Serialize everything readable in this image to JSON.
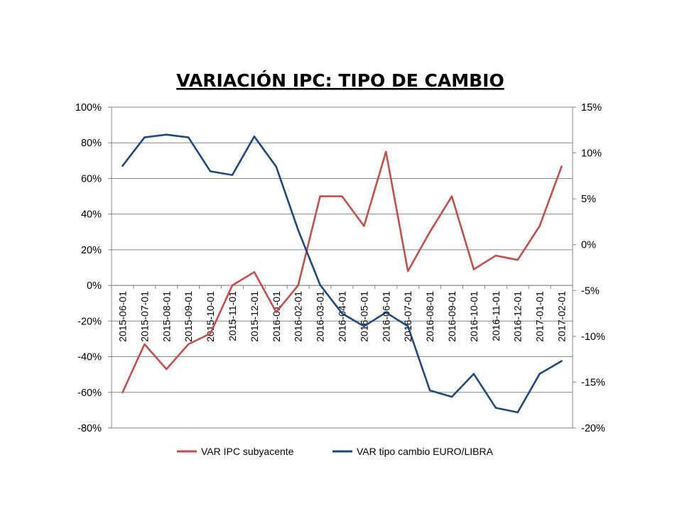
{
  "chart_data": {
    "type": "line",
    "title": "VARIACIÓN IPC: TIPO DE CAMBIO",
    "x": [
      "2015-06-01",
      "2015-07-01",
      "2015-08-01",
      "2015-09-01",
      "2015-10-01",
      "2015-11-01",
      "2015-12-01",
      "2016-01-01",
      "2016-02-01",
      "2016-03-01",
      "2016-04-01",
      "2016-05-01",
      "2016-06-01",
      "2016-07-01",
      "2016-08-01",
      "2016-09-01",
      "2016-10-01",
      "2016-11-01",
      "2016-12-01",
      "2017-01-01",
      "2017-02-01"
    ],
    "y_left": {
      "min": -80,
      "max": 100,
      "step": 20,
      "ticks": [
        "-80%",
        "-60%",
        "-40%",
        "-20%",
        "0%",
        "20%",
        "40%",
        "60%",
        "80%",
        "100%"
      ]
    },
    "y_right": {
      "min": -20,
      "max": 15,
      "step": 5,
      "ticks": [
        "-20%",
        "-15%",
        "-10%",
        "-5%",
        "0%",
        "5%",
        "10%",
        "15%"
      ]
    },
    "grid": true,
    "legend_position": "bottom",
    "series": [
      {
        "name": "VAR  IPC subyacente",
        "axis": "left",
        "color": "#c0504d",
        "values": [
          -60,
          -33,
          -47,
          -33,
          -27,
          0,
          7.5,
          -15,
          0,
          50,
          50,
          33.3,
          75,
          8,
          30,
          50,
          9,
          16.7,
          14.3,
          33.3,
          66.7
        ]
      },
      {
        "name": "VAR tipo cambio EURO/LIBRA",
        "axis": "right",
        "color": "#1f497d",
        "values": [
          8.6,
          11.7,
          12.0,
          11.7,
          8.0,
          7.6,
          11.8,
          8.5,
          1.6,
          -4.4,
          -7.5,
          -8.9,
          -7.4,
          -8.9,
          -15.9,
          -16.6,
          -14.1,
          -17.8,
          -18.3,
          -14.1,
          -12.7
        ]
      }
    ]
  }
}
